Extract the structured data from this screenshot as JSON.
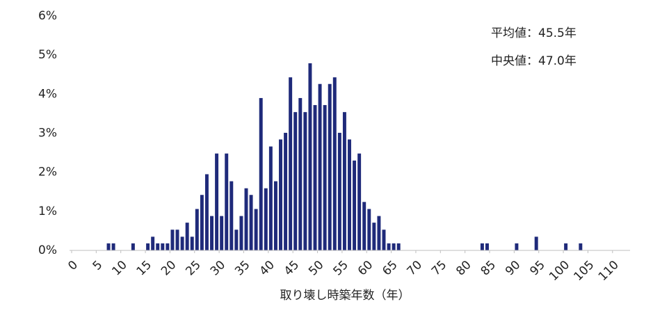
{
  "chart_data": {
    "type": "histogram",
    "x_label": "取り壊し時築年数（年）",
    "annotations": [
      "平均値：45.5年",
      "中央値：47.0年"
    ],
    "color": "#1f2a7a",
    "bins": [
      0,
      1,
      2,
      3,
      4,
      5,
      6,
      7,
      8,
      9,
      10,
      11,
      12,
      13,
      14,
      15,
      16,
      17,
      18,
      19,
      20,
      21,
      22,
      23,
      24,
      25,
      26,
      27,
      28,
      29,
      30,
      31,
      32,
      33,
      34,
      35,
      36,
      37,
      38,
      39,
      40,
      41,
      42,
      43,
      44,
      45,
      46,
      47,
      48,
      49,
      50,
      51,
      52,
      53,
      54,
      55,
      56,
      57,
      58,
      59,
      60,
      61,
      62,
      63,
      64,
      65,
      66,
      67,
      68,
      69,
      70,
      71,
      72,
      73,
      74,
      75,
      76,
      77,
      78,
      79,
      80,
      81,
      82,
      83,
      84,
      85,
      86,
      87,
      88,
      89,
      90,
      91,
      92,
      93,
      94,
      95,
      96,
      97,
      98,
      99,
      100,
      101,
      102,
      103,
      104,
      105,
      106,
      107,
      108,
      109,
      110,
      111,
      112,
      113
    ],
    "counts": [
      0,
      0,
      0,
      0,
      0,
      0,
      0,
      0.18,
      0.18,
      0,
      0,
      0,
      0.18,
      0,
      0,
      0.18,
      0.35,
      0.18,
      0.18,
      0.18,
      0.53,
      0.53,
      0.35,
      0.71,
      0.35,
      1.06,
      1.42,
      1.95,
      0.88,
      2.48,
      0.88,
      2.48,
      1.77,
      0.53,
      0.88,
      1.59,
      1.42,
      1.06,
      3.9,
      1.59,
      2.66,
      1.77,
      2.84,
      3.01,
      4.43,
      3.54,
      3.9,
      3.54,
      4.79,
      3.72,
      4.26,
      3.72,
      4.26,
      4.43,
      3.01,
      3.54,
      2.84,
      2.3,
      2.48,
      1.24,
      1.06,
      0.71,
      0.88,
      0.53,
      0.18,
      0.18,
      0.18,
      0,
      0,
      0,
      0,
      0,
      0,
      0,
      0,
      0,
      0,
      0,
      0,
      0,
      0,
      0,
      0,
      0.18,
      0.18,
      0,
      0,
      0,
      0,
      0,
      0.18,
      0,
      0,
      0,
      0.35,
      0,
      0,
      0,
      0,
      0,
      0.18,
      0,
      0,
      0.18,
      0,
      0,
      0,
      0,
      0,
      0,
      0,
      0,
      0
    ],
    "xlim": [
      0,
      113
    ],
    "xticks": [
      0,
      5,
      10,
      15,
      20,
      25,
      30,
      35,
      40,
      45,
      50,
      55,
      60,
      65,
      70,
      75,
      80,
      85,
      90,
      95,
      100,
      105,
      110
    ],
    "ylim": [
      0,
      6
    ],
    "yticks": [
      {
        "value": 0,
        "label": "0%"
      },
      {
        "value": 1,
        "label": "1%"
      },
      {
        "value": 2,
        "label": "2%"
      },
      {
        "value": 3,
        "label": "3%"
      },
      {
        "value": 4,
        "label": "4%"
      },
      {
        "value": 5,
        "label": "5%"
      },
      {
        "value": 6,
        "label": "6%"
      }
    ]
  }
}
